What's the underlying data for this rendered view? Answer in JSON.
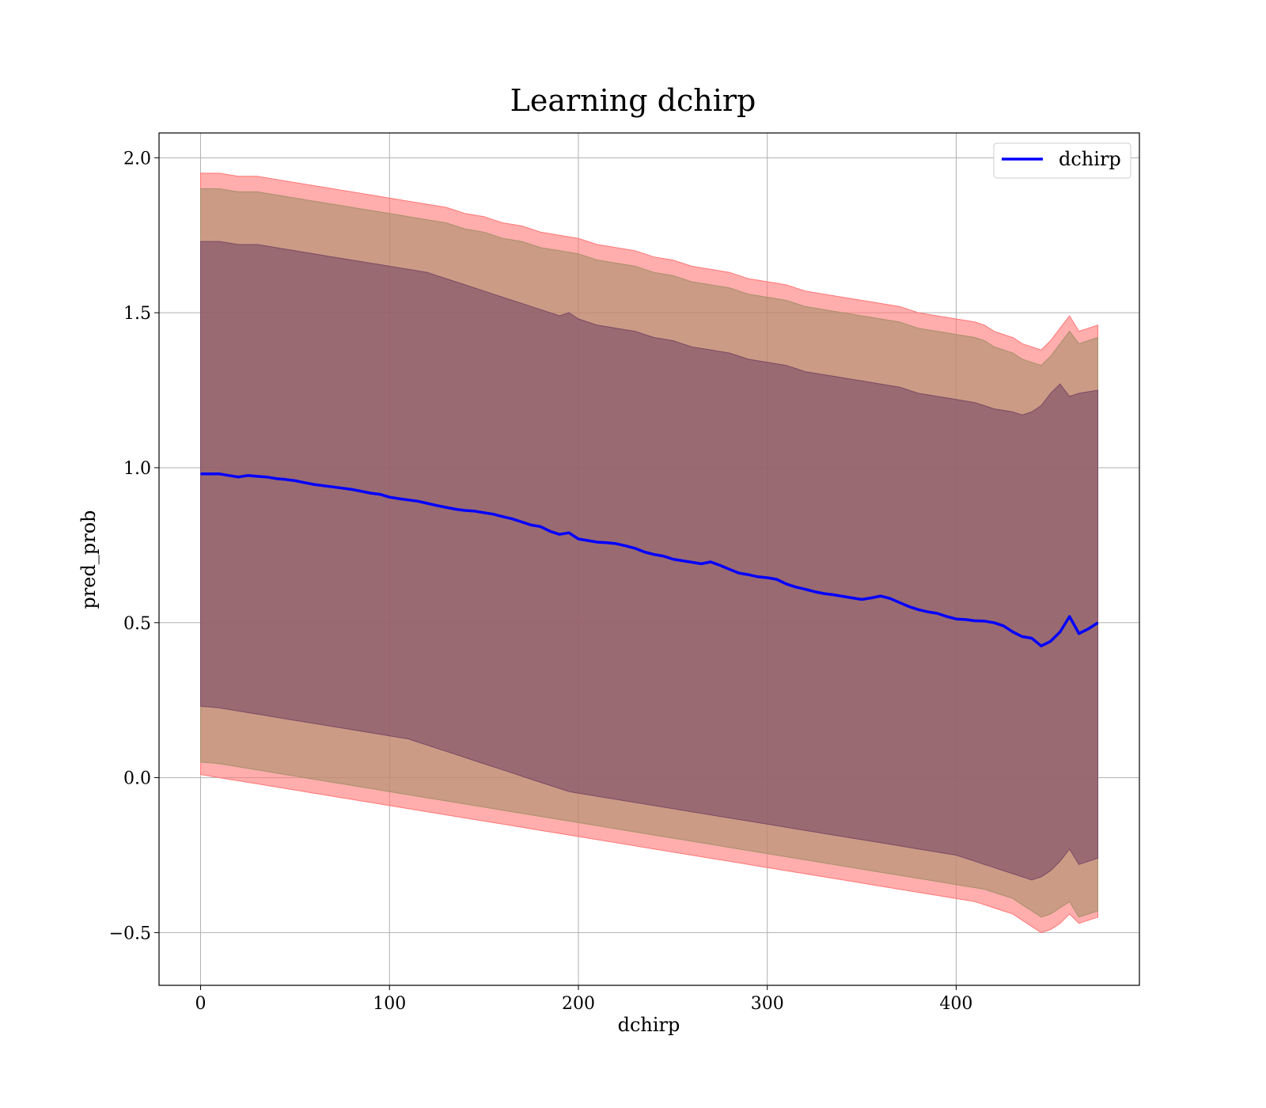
{
  "chart_data": {
    "type": "line",
    "title": "Learning dchirp",
    "xlabel": "dchirp",
    "ylabel": "pred_prob",
    "xlim": [
      -22,
      497
    ],
    "ylim": [
      -0.67,
      2.08
    ],
    "xticks": [
      0,
      100,
      200,
      300,
      400
    ],
    "xtick_labels": [
      "0",
      "100",
      "200",
      "300",
      "400"
    ],
    "yticks": [
      -0.5,
      0.0,
      0.5,
      1.0,
      1.5,
      2.0
    ],
    "ytick_labels": [
      "−0.5",
      "0.0",
      "0.5",
      "1.0",
      "1.5",
      "2.0"
    ],
    "grid": true,
    "legend_position": "top-right",
    "series": [
      {
        "name": "dchirp",
        "color": "#0000ff",
        "x": [
          0,
          5,
          10,
          15,
          20,
          25,
          30,
          35,
          40,
          45,
          50,
          55,
          60,
          65,
          70,
          75,
          80,
          85,
          90,
          95,
          100,
          105,
          110,
          115,
          120,
          125,
          130,
          135,
          140,
          145,
          150,
          155,
          160,
          165,
          170,
          175,
          180,
          185,
          190,
          195,
          200,
          205,
          210,
          215,
          220,
          225,
          230,
          235,
          240,
          245,
          250,
          255,
          260,
          265,
          270,
          275,
          280,
          285,
          290,
          295,
          300,
          305,
          310,
          315,
          320,
          325,
          330,
          335,
          340,
          345,
          350,
          355,
          360,
          365,
          370,
          375,
          380,
          385,
          390,
          395,
          400,
          405,
          410,
          415,
          420,
          425,
          430,
          435,
          440,
          445,
          450,
          455,
          460,
          465,
          470,
          475
        ],
        "y": [
          0.98,
          0.98,
          0.98,
          0.975,
          0.97,
          0.975,
          0.972,
          0.97,
          0.965,
          0.962,
          0.958,
          0.952,
          0.946,
          0.942,
          0.938,
          0.934,
          0.93,
          0.924,
          0.918,
          0.914,
          0.905,
          0.9,
          0.896,
          0.892,
          0.885,
          0.878,
          0.872,
          0.866,
          0.862,
          0.86,
          0.855,
          0.85,
          0.842,
          0.835,
          0.825,
          0.815,
          0.81,
          0.795,
          0.785,
          0.79,
          0.77,
          0.765,
          0.76,
          0.758,
          0.755,
          0.748,
          0.74,
          0.728,
          0.72,
          0.715,
          0.705,
          0.7,
          0.695,
          0.69,
          0.696,
          0.685,
          0.672,
          0.66,
          0.655,
          0.648,
          0.645,
          0.64,
          0.625,
          0.615,
          0.608,
          0.6,
          0.594,
          0.59,
          0.585,
          0.58,
          0.575,
          0.58,
          0.586,
          0.578,
          0.565,
          0.552,
          0.542,
          0.535,
          0.53,
          0.52,
          0.512,
          0.51,
          0.506,
          0.505,
          0.5,
          0.49,
          0.47,
          0.455,
          0.45,
          0.425,
          0.44,
          0.47,
          0.52,
          0.465,
          0.48,
          0.5
        ]
      }
    ],
    "bands": [
      {
        "name": "",
        "color": "#ff7777",
        "lower": [
          0.01,
          0.005,
          0.0,
          -0.005,
          -0.01,
          -0.015,
          -0.02,
          -0.025,
          -0.03,
          -0.035,
          -0.04,
          -0.045,
          -0.05,
          -0.055,
          -0.06,
          -0.065,
          -0.07,
          -0.075,
          -0.08,
          -0.085,
          -0.09,
          -0.095,
          -0.1,
          -0.105,
          -0.11,
          -0.115,
          -0.12,
          -0.125,
          -0.13,
          -0.135,
          -0.14,
          -0.145,
          -0.15,
          -0.155,
          -0.16,
          -0.165,
          -0.17,
          -0.175,
          -0.18,
          -0.185,
          -0.19,
          -0.195,
          -0.2,
          -0.205,
          -0.21,
          -0.215,
          -0.22,
          -0.225,
          -0.23,
          -0.235,
          -0.24,
          -0.245,
          -0.25,
          -0.255,
          -0.26,
          -0.265,
          -0.27,
          -0.275,
          -0.28,
          -0.285,
          -0.29,
          -0.295,
          -0.3,
          -0.305,
          -0.31,
          -0.315,
          -0.32,
          -0.325,
          -0.33,
          -0.335,
          -0.34,
          -0.345,
          -0.35,
          -0.355,
          -0.36,
          -0.365,
          -0.37,
          -0.375,
          -0.38,
          -0.385,
          -0.39,
          -0.395,
          -0.4,
          -0.41,
          -0.42,
          -0.43,
          -0.44,
          -0.46,
          -0.48,
          -0.5,
          -0.49,
          -0.47,
          -0.44,
          -0.47,
          -0.46,
          -0.45
        ],
        "upper": [
          1.95,
          1.95,
          1.95,
          1.945,
          1.94,
          1.94,
          1.94,
          1.935,
          1.93,
          1.925,
          1.92,
          1.915,
          1.91,
          1.905,
          1.9,
          1.895,
          1.89,
          1.885,
          1.88,
          1.875,
          1.87,
          1.865,
          1.86,
          1.855,
          1.85,
          1.845,
          1.84,
          1.83,
          1.82,
          1.815,
          1.81,
          1.8,
          1.79,
          1.785,
          1.78,
          1.77,
          1.76,
          1.755,
          1.75,
          1.745,
          1.74,
          1.73,
          1.72,
          1.715,
          1.71,
          1.705,
          1.7,
          1.69,
          1.68,
          1.675,
          1.67,
          1.66,
          1.65,
          1.645,
          1.64,
          1.635,
          1.63,
          1.62,
          1.61,
          1.605,
          1.6,
          1.595,
          1.59,
          1.58,
          1.57,
          1.565,
          1.56,
          1.555,
          1.55,
          1.545,
          1.54,
          1.535,
          1.53,
          1.525,
          1.52,
          1.51,
          1.5,
          1.495,
          1.49,
          1.485,
          1.48,
          1.475,
          1.47,
          1.46,
          1.44,
          1.43,
          1.42,
          1.4,
          1.39,
          1.38,
          1.41,
          1.45,
          1.49,
          1.44,
          1.45,
          1.46
        ]
      },
      {
        "name": "",
        "color": "#a8906a",
        "lower": [
          0.05,
          0.048,
          0.045,
          0.04,
          0.035,
          0.03,
          0.025,
          0.02,
          0.015,
          0.01,
          0.005,
          0.0,
          -0.005,
          -0.01,
          -0.015,
          -0.02,
          -0.025,
          -0.03,
          -0.035,
          -0.04,
          -0.045,
          -0.05,
          -0.055,
          -0.06,
          -0.065,
          -0.07,
          -0.075,
          -0.08,
          -0.085,
          -0.09,
          -0.095,
          -0.1,
          -0.105,
          -0.11,
          -0.115,
          -0.12,
          -0.125,
          -0.13,
          -0.135,
          -0.14,
          -0.145,
          -0.15,
          -0.155,
          -0.16,
          -0.165,
          -0.17,
          -0.175,
          -0.18,
          -0.185,
          -0.19,
          -0.195,
          -0.2,
          -0.205,
          -0.21,
          -0.215,
          -0.22,
          -0.225,
          -0.23,
          -0.235,
          -0.24,
          -0.245,
          -0.25,
          -0.255,
          -0.26,
          -0.265,
          -0.27,
          -0.275,
          -0.28,
          -0.285,
          -0.29,
          -0.295,
          -0.3,
          -0.305,
          -0.31,
          -0.315,
          -0.32,
          -0.325,
          -0.33,
          -0.335,
          -0.34,
          -0.345,
          -0.35,
          -0.355,
          -0.36,
          -0.37,
          -0.38,
          -0.39,
          -0.41,
          -0.43,
          -0.45,
          -0.44,
          -0.42,
          -0.4,
          -0.45,
          -0.44,
          -0.43
        ],
        "upper": [
          1.9,
          1.9,
          1.9,
          1.895,
          1.89,
          1.89,
          1.89,
          1.885,
          1.88,
          1.875,
          1.87,
          1.865,
          1.86,
          1.855,
          1.85,
          1.845,
          1.84,
          1.835,
          1.83,
          1.825,
          1.82,
          1.815,
          1.81,
          1.805,
          1.8,
          1.795,
          1.79,
          1.78,
          1.77,
          1.765,
          1.76,
          1.75,
          1.74,
          1.735,
          1.73,
          1.72,
          1.71,
          1.705,
          1.7,
          1.695,
          1.69,
          1.68,
          1.67,
          1.665,
          1.66,
          1.655,
          1.65,
          1.64,
          1.63,
          1.625,
          1.62,
          1.61,
          1.6,
          1.595,
          1.59,
          1.585,
          1.58,
          1.57,
          1.56,
          1.555,
          1.55,
          1.545,
          1.54,
          1.53,
          1.52,
          1.515,
          1.51,
          1.505,
          1.5,
          1.495,
          1.49,
          1.485,
          1.48,
          1.475,
          1.47,
          1.46,
          1.45,
          1.445,
          1.44,
          1.435,
          1.43,
          1.425,
          1.42,
          1.41,
          1.39,
          1.38,
          1.37,
          1.35,
          1.34,
          1.33,
          1.36,
          1.4,
          1.44,
          1.4,
          1.41,
          1.42
        ]
      },
      {
        "name": "",
        "color": "#7a4a66",
        "lower": [
          0.23,
          0.228,
          0.225,
          0.22,
          0.215,
          0.21,
          0.205,
          0.2,
          0.195,
          0.19,
          0.185,
          0.18,
          0.175,
          0.17,
          0.165,
          0.16,
          0.155,
          0.15,
          0.145,
          0.14,
          0.135,
          0.13,
          0.125,
          0.115,
          0.105,
          0.095,
          0.085,
          0.075,
          0.065,
          0.055,
          0.045,
          0.035,
          0.025,
          0.015,
          0.005,
          -0.005,
          -0.015,
          -0.025,
          -0.035,
          -0.045,
          -0.05,
          -0.055,
          -0.06,
          -0.065,
          -0.07,
          -0.075,
          -0.08,
          -0.085,
          -0.09,
          -0.095,
          -0.1,
          -0.105,
          -0.11,
          -0.115,
          -0.12,
          -0.125,
          -0.13,
          -0.135,
          -0.14,
          -0.145,
          -0.15,
          -0.155,
          -0.16,
          -0.165,
          -0.17,
          -0.175,
          -0.18,
          -0.185,
          -0.19,
          -0.195,
          -0.2,
          -0.205,
          -0.21,
          -0.215,
          -0.22,
          -0.225,
          -0.23,
          -0.235,
          -0.24,
          -0.245,
          -0.25,
          -0.26,
          -0.27,
          -0.28,
          -0.29,
          -0.3,
          -0.31,
          -0.32,
          -0.33,
          -0.32,
          -0.3,
          -0.27,
          -0.23,
          -0.28,
          -0.27,
          -0.26
        ],
        "upper": [
          1.73,
          1.73,
          1.73,
          1.725,
          1.72,
          1.72,
          1.72,
          1.715,
          1.71,
          1.705,
          1.7,
          1.695,
          1.69,
          1.685,
          1.68,
          1.675,
          1.67,
          1.665,
          1.66,
          1.655,
          1.65,
          1.645,
          1.64,
          1.635,
          1.63,
          1.62,
          1.61,
          1.6,
          1.59,
          1.58,
          1.57,
          1.56,
          1.55,
          1.54,
          1.53,
          1.52,
          1.51,
          1.5,
          1.49,
          1.5,
          1.48,
          1.47,
          1.46,
          1.455,
          1.45,
          1.445,
          1.44,
          1.43,
          1.42,
          1.415,
          1.41,
          1.4,
          1.39,
          1.385,
          1.38,
          1.375,
          1.37,
          1.36,
          1.35,
          1.345,
          1.34,
          1.335,
          1.33,
          1.32,
          1.31,
          1.305,
          1.3,
          1.295,
          1.29,
          1.285,
          1.28,
          1.275,
          1.27,
          1.265,
          1.26,
          1.25,
          1.24,
          1.235,
          1.23,
          1.225,
          1.22,
          1.215,
          1.21,
          1.2,
          1.19,
          1.185,
          1.18,
          1.17,
          1.18,
          1.2,
          1.24,
          1.27,
          1.23,
          1.24,
          1.245,
          1.25
        ]
      }
    ]
  }
}
